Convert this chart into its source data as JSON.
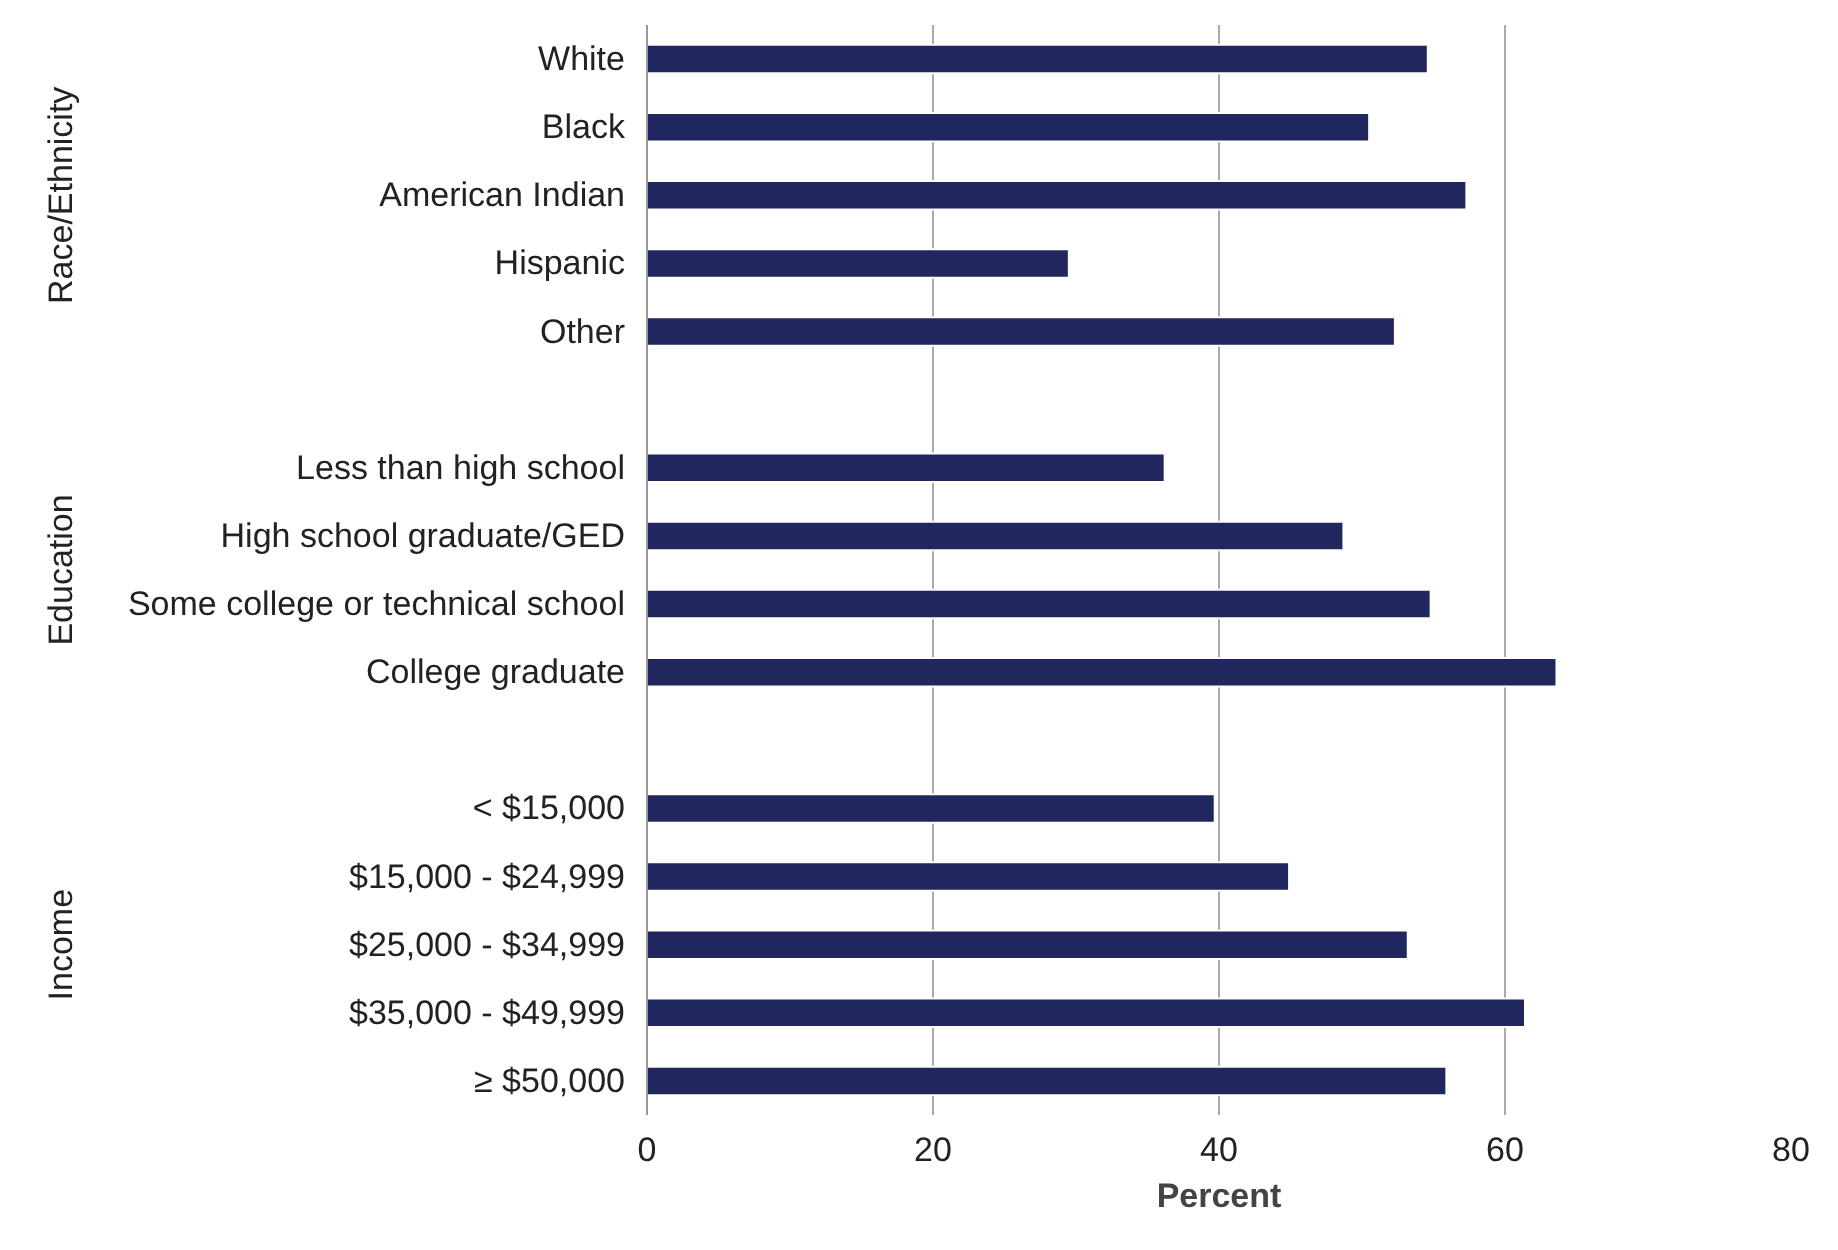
{
  "chart_data": {
    "type": "bar",
    "orientation": "horizontal",
    "xlabel": "Percent",
    "categories": [
      "White",
      "Black",
      "American Indian",
      "Hispanic",
      "Other",
      null,
      "Less than high school",
      "High school graduate/GED",
      "Some college or technical school",
      "College graduate",
      null,
      "< $15,000",
      "$15,000 - $24,999",
      "$25,000 - $34,999",
      "$35,000 - $49,999",
      "≥ $50,000"
    ],
    "values": [
      54.6,
      50.5,
      57.3,
      29.5,
      52.3,
      null,
      36.2,
      48.7,
      54.8,
      63.6,
      null,
      39.7,
      44.9,
      53.2,
      61.4,
      55.9
    ],
    "color": "#20275f",
    "xlim": [
      0,
      80
    ],
    "xticks": [
      0,
      20,
      40,
      60,
      80
    ],
    "grid": "x",
    "annotations": [
      "Race/Ethnicity",
      "Education",
      "Income"
    ]
  }
}
